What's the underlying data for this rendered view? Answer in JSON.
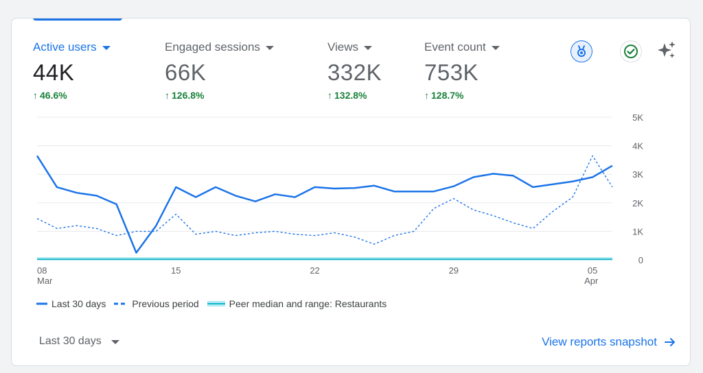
{
  "metrics": [
    {
      "label": "Active users",
      "value": "44K",
      "change": "46.6%",
      "active": true
    },
    {
      "label": "Engaged sessions",
      "value": "66K",
      "change": "126.8%",
      "active": false
    },
    {
      "label": "Views",
      "value": "332K",
      "change": "132.8%",
      "active": false
    },
    {
      "label": "Event count",
      "value": "753K",
      "change": "128.7%",
      "active": false
    }
  ],
  "icons": {
    "insights": "ribbon-badge-icon",
    "status": "check-circle-icon",
    "ai": "sparkle-icon",
    "trend": "arrow-up-icon",
    "link": "arrow-right-icon"
  },
  "colors": {
    "accent": "#1a73e8",
    "positive": "#188038",
    "peer": "#12b5cb"
  },
  "legend": {
    "current": "Last 30 days",
    "previous": "Previous period",
    "peer": "Peer median and range: Restaurants"
  },
  "footer": {
    "range_label": "Last 30 days",
    "link_label": "View reports snapshot"
  },
  "chart_data": {
    "type": "line",
    "x_ticks": [
      {
        "label": "08",
        "sub": "Mar",
        "index": 0
      },
      {
        "label": "15",
        "sub": "",
        "index": 7
      },
      {
        "label": "22",
        "sub": "",
        "index": 14
      },
      {
        "label": "29",
        "sub": "",
        "index": 21
      },
      {
        "label": "05",
        "sub": "Apr",
        "index": 28
      }
    ],
    "y_ticks": [
      "0",
      "1K",
      "2K",
      "3K",
      "4K",
      "5K"
    ],
    "ylim": [
      0,
      5000
    ],
    "x_count": 30,
    "series": [
      {
        "name": "Last 30 days",
        "style": "solid",
        "values": [
          3650,
          2550,
          2350,
          2250,
          1950,
          250,
          1200,
          2550,
          2200,
          2550,
          2250,
          2050,
          2300,
          2200,
          2550,
          2500,
          2520,
          2600,
          2400,
          2400,
          2400,
          2580,
          2900,
          3020,
          2950,
          2550,
          2650,
          2750,
          2900,
          3300
        ]
      },
      {
        "name": "Previous period",
        "style": "dashed",
        "values": [
          1450,
          1100,
          1200,
          1100,
          850,
          1000,
          1000,
          1600,
          900,
          1000,
          850,
          950,
          1000,
          900,
          850,
          950,
          800,
          550,
          850,
          1000,
          1800,
          2150,
          1750,
          1550,
          1300,
          1100,
          1700,
          2200,
          3650,
          2550
        ]
      },
      {
        "name": "Peer median and range: Restaurants",
        "style": "band",
        "values": [
          20,
          20,
          20,
          20,
          20,
          20,
          20,
          20,
          20,
          20,
          20,
          20,
          20,
          20,
          20,
          20,
          20,
          20,
          20,
          20,
          20,
          20,
          20,
          20,
          20,
          20,
          20,
          20,
          20,
          20
        ]
      }
    ]
  }
}
